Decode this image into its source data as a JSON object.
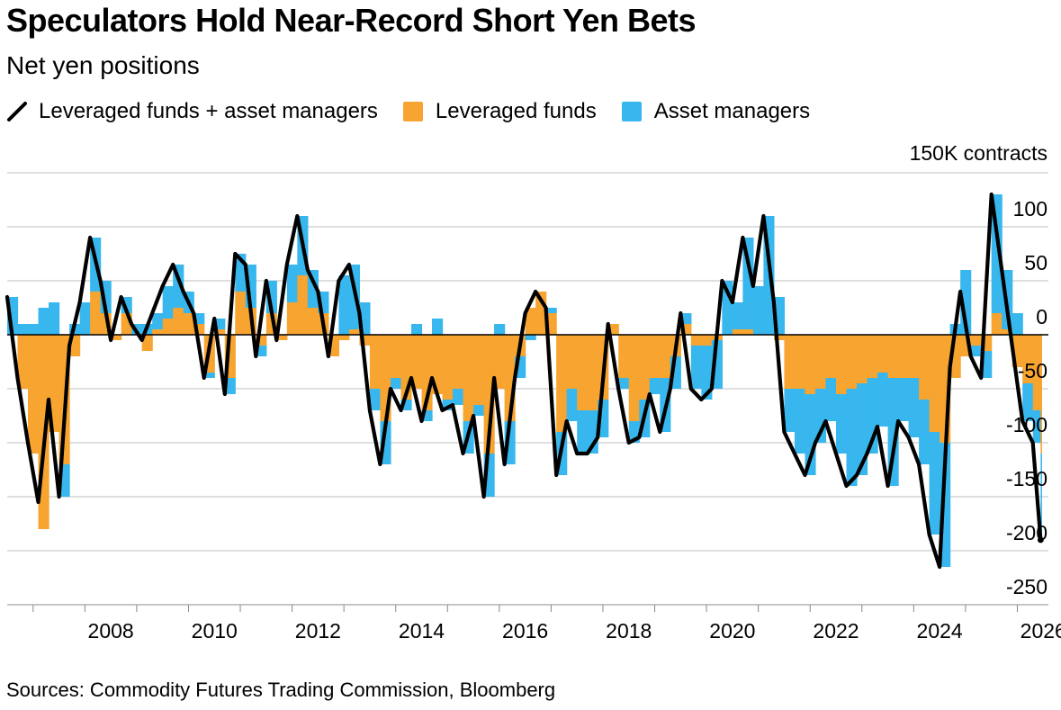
{
  "title": "Speculators Hold Near-Record Short Yen Bets",
  "subtitle": "Net yen positions",
  "source": "Sources: Commodity Futures Trading Commission, Bloomberg",
  "legend": [
    {
      "label": "Leveraged funds + asset managers",
      "color": "#000000",
      "kind": "line"
    },
    {
      "label": "Leveraged funds",
      "color": "#F7A430",
      "kind": "area"
    },
    {
      "label": "Asset managers",
      "color": "#37B7EE",
      "kind": "area"
    }
  ],
  "colors": {
    "leveraged": "#F7A430",
    "asset": "#37B7EE",
    "total": "#000000",
    "grid": "#CCCCCC"
  },
  "chart_data": {
    "type": "area",
    "ylabel": "contracts",
    "y_top_label": "150K contracts",
    "ylim": [
      -250,
      150
    ],
    "yticks": [
      150,
      100,
      50,
      0,
      -50,
      -100,
      -150,
      -200,
      -250
    ],
    "ytick_labels": [
      "150K contracts",
      "100",
      "50",
      "0",
      "-50",
      "-100",
      "-150",
      "-200",
      "-250"
    ],
    "xlim": [
      2006.5,
      2026.6
    ],
    "xticks": [
      2008,
      2010,
      2012,
      2014,
      2016,
      2018,
      2020,
      2022,
      2024,
      2026
    ],
    "grid": true,
    "legend_position": "top",
    "x": [
      2006.5,
      2006.7,
      2006.9,
      2007.1,
      2007.3,
      2007.5,
      2007.7,
      2007.9,
      2008.1,
      2008.3,
      2008.5,
      2008.7,
      2008.9,
      2009.1,
      2009.3,
      2009.5,
      2009.7,
      2009.9,
      2010.1,
      2010.3,
      2010.5,
      2010.7,
      2010.9,
      2011.1,
      2011.3,
      2011.5,
      2011.7,
      2011.9,
      2012.1,
      2012.3,
      2012.5,
      2012.7,
      2012.9,
      2013.1,
      2013.3,
      2013.5,
      2013.7,
      2013.9,
      2014.1,
      2014.3,
      2014.5,
      2014.7,
      2014.9,
      2015.1,
      2015.3,
      2015.5,
      2015.7,
      2015.9,
      2016.1,
      2016.3,
      2016.5,
      2016.7,
      2016.9,
      2017.1,
      2017.3,
      2017.5,
      2017.7,
      2017.9,
      2018.1,
      2018.3,
      2018.5,
      2018.7,
      2018.9,
      2019.1,
      2019.3,
      2019.5,
      2019.7,
      2019.9,
      2020.1,
      2020.3,
      2020.5,
      2020.7,
      2020.9,
      2021.1,
      2021.3,
      2021.5,
      2021.7,
      2021.9,
      2022.1,
      2022.3,
      2022.5,
      2022.7,
      2022.9,
      2023.1,
      2023.3,
      2023.5,
      2023.7,
      2023.9,
      2024.1,
      2024.3,
      2024.5,
      2024.7,
      2024.9,
      2025.1,
      2025.3,
      2025.5,
      2025.7,
      2025.9,
      2026.1,
      2026.3,
      2026.45
    ],
    "series": [
      {
        "name": "Leveraged funds + asset managers",
        "values": [
          35,
          -40,
          -100,
          -155,
          -60,
          -150,
          -10,
          30,
          90,
          50,
          -5,
          35,
          10,
          -5,
          20,
          45,
          65,
          40,
          20,
          -40,
          15,
          -55,
          75,
          65,
          -20,
          50,
          -5,
          65,
          110,
          60,
          40,
          -20,
          50,
          65,
          20,
          -70,
          -120,
          -50,
          -70,
          -40,
          -80,
          -40,
          -70,
          -65,
          -110,
          -75,
          -150,
          -40,
          -120,
          -40,
          20,
          40,
          25,
          -130,
          -80,
          -110,
          -110,
          -95,
          10,
          -50,
          -100,
          -95,
          -55,
          -90,
          -50,
          20,
          -50,
          -60,
          -50,
          50,
          30,
          90,
          45,
          110,
          30,
          -90,
          -110,
          -130,
          -100,
          -80,
          -110,
          -140,
          -130,
          -110,
          -85,
          -140,
          -80,
          -95,
          -120,
          -185,
          -215,
          -30,
          40,
          -20,
          -40,
          130,
          60,
          -10,
          -80,
          -100,
          -190
        ]
      },
      {
        "name": "Leveraged funds",
        "values": [
          0,
          -50,
          -110,
          -180,
          -90,
          -120,
          -20,
          0,
          40,
          20,
          -5,
          20,
          0,
          -15,
          5,
          15,
          25,
          20,
          10,
          -35,
          5,
          -40,
          40,
          25,
          -10,
          20,
          -5,
          30,
          55,
          25,
          20,
          -20,
          -5,
          5,
          -10,
          -50,
          -80,
          -40,
          -60,
          -50,
          -70,
          -55,
          -60,
          -50,
          -80,
          -65,
          -110,
          -50,
          -80,
          -20,
          25,
          40,
          20,
          -90,
          -50,
          -70,
          -70,
          -60,
          10,
          -40,
          -80,
          -60,
          -40,
          -40,
          -20,
          10,
          -10,
          -10,
          -5,
          0,
          5,
          5,
          0,
          0,
          -5,
          -50,
          -50,
          -55,
          -50,
          -40,
          -55,
          -50,
          -45,
          -40,
          -35,
          -40,
          -40,
          -40,
          -60,
          -90,
          -100,
          -40,
          -20,
          -10,
          -15,
          20,
          5,
          -30,
          -45,
          -70,
          -110
        ]
      }
    ]
  },
  "x_axis_labels": [
    "2008",
    "2010",
    "2012",
    "2014",
    "2016",
    "2018",
    "2020",
    "2022",
    "2024",
    "2026"
  ]
}
